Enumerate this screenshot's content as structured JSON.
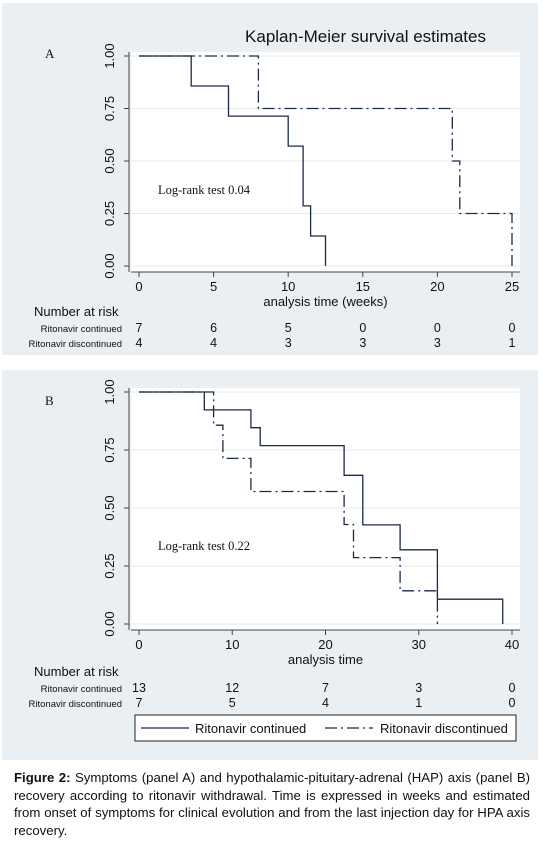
{
  "chart_data": [
    {
      "type": "line",
      "panel_label": "A",
      "title": "Kaplan-Meier survival estimates",
      "xlabel": "analysis time (weeks)",
      "xlim": [
        0,
        25
      ],
      "xticks": [
        "0",
        "5",
        "10",
        "15",
        "20",
        "25"
      ],
      "ylim": [
        0,
        1
      ],
      "yticks": [
        "0.00",
        "0.25",
        "0.50",
        "0.75",
        "1.00"
      ],
      "grid": "horizontal",
      "annotation": "Log-rank test 0.04",
      "series": [
        {
          "name": "Ritonavir continued",
          "style": "solid",
          "x": [
            0,
            3.5,
            3.5,
            6,
            6,
            10,
            10,
            11,
            11,
            11.5,
            11.5,
            12.5,
            12.5
          ],
          "y": [
            1,
            1,
            0.857,
            0.857,
            0.714,
            0.714,
            0.571,
            0.571,
            0.286,
            0.286,
            0.143,
            0.143,
            0
          ]
        },
        {
          "name": "Ritonavir discontinued",
          "style": "dash-dot",
          "x": [
            0,
            8,
            8,
            21,
            21,
            21.5,
            21.5,
            25,
            25
          ],
          "y": [
            1,
            1,
            0.75,
            0.75,
            0.5,
            0.5,
            0.25,
            0.25,
            0
          ]
        }
      ],
      "risk_table": {
        "header": "Number at risk",
        "rows": [
          {
            "label": "Ritonavir continued",
            "values": [
              "7",
              "6",
              "5",
              "0",
              "0",
              "0"
            ]
          },
          {
            "label": "Ritonavir discontinued",
            "values": [
              "4",
              "4",
              "3",
              "3",
              "3",
              "1"
            ]
          }
        ]
      }
    },
    {
      "type": "line",
      "panel_label": "B",
      "xlabel": "analysis time",
      "xlim": [
        0,
        40
      ],
      "xticks": [
        "0",
        "10",
        "20",
        "30",
        "40"
      ],
      "ylim": [
        0,
        1
      ],
      "yticks": [
        "0.00",
        "0.25",
        "0.50",
        "0.75",
        "1.00"
      ],
      "grid": "horizontal",
      "annotation": "Log-rank test 0.22",
      "series": [
        {
          "name": "Ritonavir continued",
          "style": "solid",
          "x": [
            0,
            7,
            7,
            12,
            12,
            13,
            13,
            22,
            22,
            24,
            24,
            28,
            28,
            32,
            32,
            39,
            39
          ],
          "y": [
            1,
            1,
            0.923,
            0.923,
            0.846,
            0.846,
            0.769,
            0.769,
            0.641,
            0.641,
            0.427,
            0.427,
            0.32,
            0.32,
            0.107,
            0.107,
            0
          ]
        },
        {
          "name": "Ritonavir discontinued",
          "style": "dash-dot",
          "x": [
            0,
            8,
            8,
            9,
            9,
            12,
            12,
            22,
            22,
            23,
            23,
            28,
            28,
            32,
            32
          ],
          "y": [
            1,
            1,
            0.857,
            0.857,
            0.714,
            0.714,
            0.571,
            0.571,
            0.429,
            0.429,
            0.286,
            0.286,
            0.143,
            0.143,
            0
          ]
        }
      ],
      "risk_table": {
        "header": "Number at risk",
        "rows": [
          {
            "label": "Ritonavir continued",
            "values": [
              "13",
              "12",
              "7",
              "3",
              "0"
            ]
          },
          {
            "label": "Ritonavir discontinued",
            "values": [
              "7",
              "5",
              "4",
              "1",
              "0"
            ]
          }
        ]
      },
      "legend": {
        "placement": "bottom",
        "entries": [
          "Ritonavir continued",
          "Ritonavir discontinued"
        ]
      }
    }
  ],
  "caption": {
    "label": "Figure 2:",
    "text": " Symptoms (panel A) and hypothalamic-pituitary-adrenal (HAP) axis (panel B) recovery according to ritonavir withdrawal. Time is expressed in weeks and estimated from onset of symptoms for clinical evolution and from the last injection day for HPA axis recovery."
  }
}
